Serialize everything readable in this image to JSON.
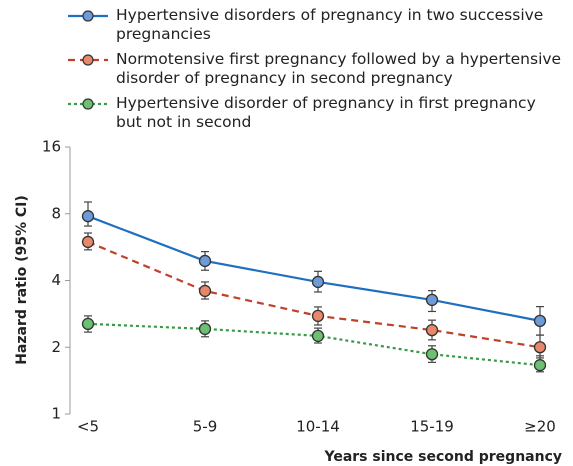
{
  "chart_data": {
    "type": "line",
    "categories": [
      "<5",
      "5-9",
      "10-14",
      "15-19",
      "≥20"
    ],
    "y_label": "Hazard ratio (95% CI)",
    "x_label": "Years since second pregnancy",
    "log_scale": true,
    "ylim": [
      1,
      16
    ],
    "yticks": [
      1,
      2,
      4,
      8,
      16
    ],
    "series": [
      {
        "name": "Hypertensive disorders of pregnancy in two successive pregnancies",
        "color": "#1f6fc0",
        "marker_color": "#6d9bd8",
        "style": "solid",
        "values": [
          7.8,
          4.9,
          3.94,
          3.27,
          2.63
        ],
        "lower": [
          7.04,
          4.45,
          3.55,
          2.9,
          2.27
        ],
        "upper": [
          9.04,
          5.4,
          4.4,
          3.6,
          3.05
        ]
      },
      {
        "name": "Normotensive first pregnancy followed by a hypertensive disorder of pregnancy in second pregnancy",
        "color": "#c0412a",
        "marker_color": "#e8876a",
        "style": "dashed",
        "values": [
          5.97,
          3.59,
          2.77,
          2.39,
          2.0
        ],
        "lower": [
          5.5,
          3.3,
          2.52,
          2.16,
          1.79
        ],
        "upper": [
          6.55,
          3.94,
          3.04,
          2.65,
          2.27
        ]
      },
      {
        "name": "Hypertensive disorder of pregnancy in first pregnancy but not in second",
        "color": "#3a9a48",
        "marker_color": "#6cc072",
        "style": "dotted",
        "values": [
          2.55,
          2.42,
          2.25,
          1.86,
          1.66
        ],
        "lower": [
          2.34,
          2.23,
          2.09,
          1.71,
          1.55
        ],
        "upper": [
          2.77,
          2.63,
          2.44,
          2.03,
          1.83
        ]
      }
    ]
  }
}
